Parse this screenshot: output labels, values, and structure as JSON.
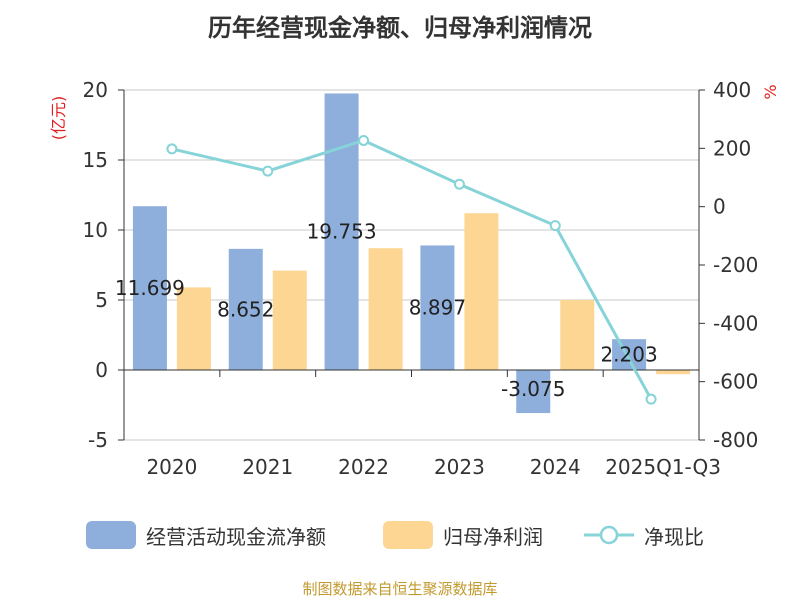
{
  "title": "历年经营现金净额、归母净利润情况",
  "source": "制图数据来自恒生聚源数据库",
  "chart_data": {
    "type": "bar",
    "categories": [
      "2020",
      "2021",
      "2022",
      "2023",
      "2024",
      "2025Q1-Q3"
    ],
    "series": [
      {
        "name": "经营活动现金流净额",
        "type": "bar",
        "axis": "left",
        "color": "#8eaedb",
        "values": [
          11.699,
          8.652,
          19.753,
          8.897,
          -3.075,
          2.203
        ],
        "labels": [
          "11.699",
          "8.652",
          "19.753",
          "8.897",
          "-3.075",
          "2.203"
        ]
      },
      {
        "name": "归母净利润",
        "type": "bar",
        "axis": "left",
        "color": "#fdd693",
        "values": [
          5.9,
          7.1,
          8.7,
          11.2,
          5.0,
          -0.3
        ]
      },
      {
        "name": "净现比",
        "type": "line",
        "axis": "right",
        "color": "#86d3d8",
        "values": [
          198,
          122,
          227,
          77,
          -65,
          -660
        ]
      }
    ],
    "y_left": {
      "label": "(亿元)",
      "ylim": [
        -5,
        20
      ],
      "ticks": [
        "20",
        "15",
        "10",
        "5",
        "0",
        "-5"
      ]
    },
    "y_right": {
      "label": "%",
      "ylim": [
        -800,
        400
      ],
      "ticks": [
        "400",
        "200",
        "0",
        "-200",
        "-400",
        "-600",
        "-800"
      ]
    },
    "grid": true,
    "legend": "bottom"
  }
}
